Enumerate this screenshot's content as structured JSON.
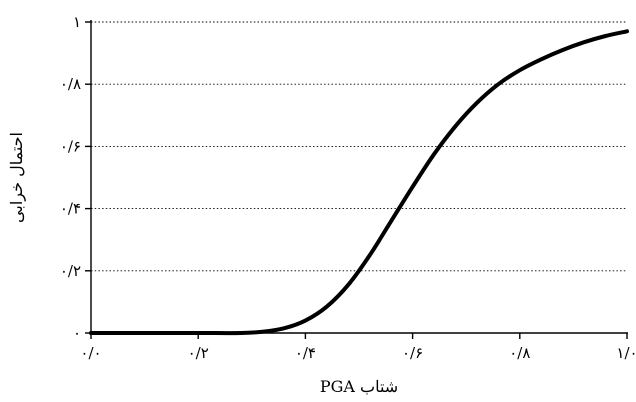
{
  "chart_data": {
    "type": "line",
    "title": "",
    "xlabel": "شتاب PGA",
    "ylabel": "احتمال خرابی",
    "xlim": [
      0,
      1
    ],
    "ylim": [
      0,
      1
    ],
    "x_ticks": [
      0,
      0.2,
      0.4,
      0.6,
      0.8,
      1.0
    ],
    "x_tick_labels": [
      "۰/۰",
      "۰/۲",
      "۰/۴",
      "۰/۶",
      "۰/۸",
      "۱/۰"
    ],
    "y_ticks": [
      0,
      0.2,
      0.4,
      0.6,
      0.8,
      1
    ],
    "y_tick_labels": [
      "۰",
      "۰/۲",
      "۰/۴",
      "۰/۶",
      "۰/۸",
      "۱"
    ],
    "grid": "horizontal-dotted",
    "series": [
      {
        "color": "#000000",
        "x": [
          0.0,
          0.1,
          0.2,
          0.28,
          0.32,
          0.36,
          0.4,
          0.44,
          0.48,
          0.52,
          0.56,
          0.6,
          0.64,
          0.68,
          0.72,
          0.76,
          0.8,
          0.84,
          0.88,
          0.92,
          0.96,
          1.0
        ],
        "y": [
          0.0,
          0.0,
          0.0,
          0.0,
          0.004,
          0.015,
          0.04,
          0.085,
          0.155,
          0.25,
          0.36,
          0.47,
          0.575,
          0.665,
          0.74,
          0.8,
          0.845,
          0.88,
          0.91,
          0.935,
          0.955,
          0.97
        ]
      }
    ]
  }
}
